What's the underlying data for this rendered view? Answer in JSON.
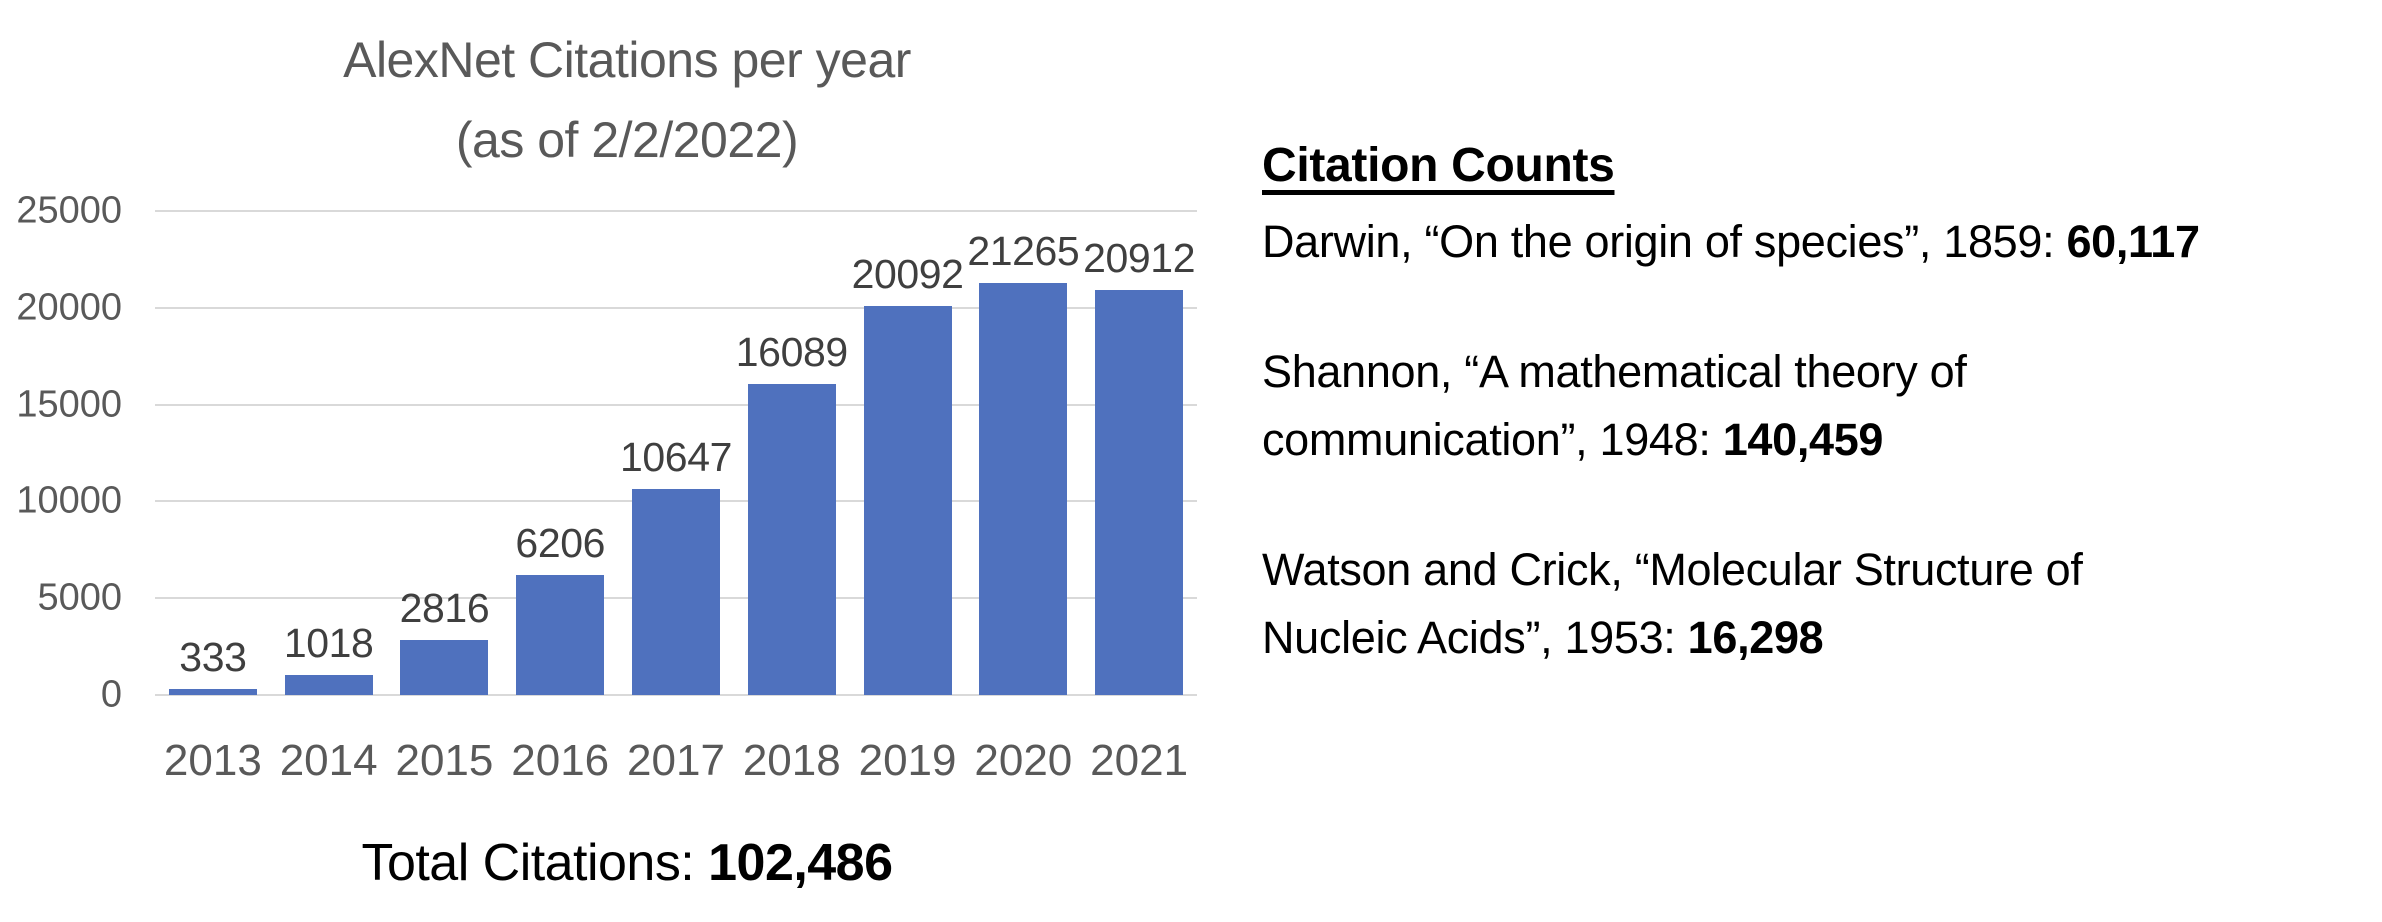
{
  "chart_data": {
    "type": "bar",
    "title_lines": [
      "AlexNet Citations per year",
      "(as of 2/2/2022)"
    ],
    "categories": [
      "2013",
      "2014",
      "2015",
      "2016",
      "2017",
      "2018",
      "2019",
      "2020",
      "2021"
    ],
    "values": [
      333,
      1018,
      2816,
      6206,
      10647,
      16089,
      20092,
      21265,
      20912
    ],
    "y_ticks": [
      0,
      5000,
      10000,
      15000,
      20000,
      25000
    ],
    "ylim": [
      0,
      25000
    ],
    "grid": true,
    "legend": "none",
    "xlabel": "",
    "ylabel": "",
    "bar_color": "#4F71BE",
    "gridline_color": "#D9D9D9",
    "title_color": "#595959",
    "axis_label_color": "#595959",
    "data_label_color": "#3F3F3F"
  },
  "total": {
    "label": "Total Citations: ",
    "value": "102,486"
  },
  "citations": {
    "heading": "Citation Counts",
    "entries": [
      {
        "lines": [
          "Darwin, “On the origin of species”, 1859: "
        ],
        "count": "60,117"
      },
      {
        "lines": [
          "Shannon, “A mathematical theory of",
          "communication”, 1948: "
        ],
        "count": "140,459"
      },
      {
        "lines": [
          "Watson and Crick, “Molecular Structure of",
          "Nucleic Acids”, 1953: "
        ],
        "count": "16,298"
      }
    ]
  }
}
